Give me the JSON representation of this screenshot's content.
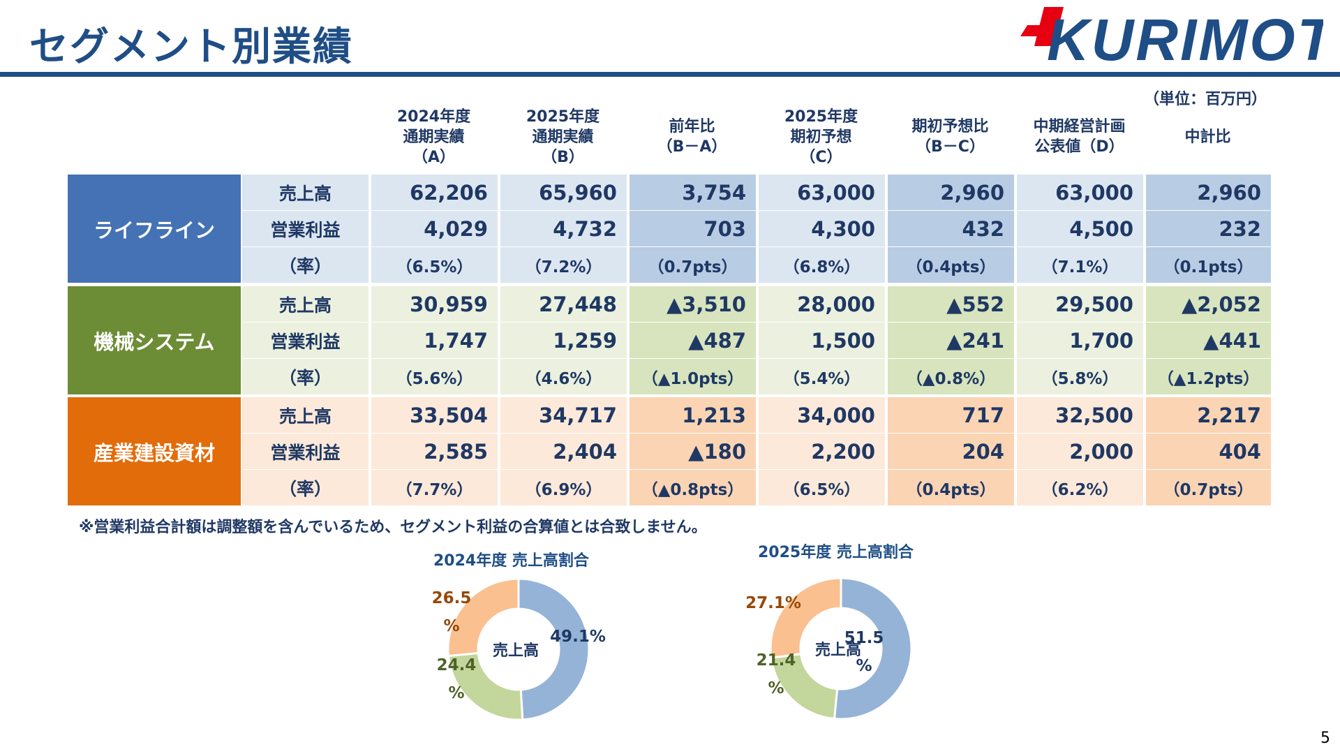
{
  "header": {
    "title": "セグメント別業績",
    "logo_text": "KURIMOTO",
    "unit_note": "（単位：百万円）"
  },
  "colors": {
    "navy": "#1f4e86",
    "lifeline": "#4472b4",
    "machinery": "#6d8c36",
    "industrial": "#e36c0a",
    "logo_red": "#e60012"
  },
  "columns": [
    "2024年度\n通期実績\n（A）",
    "2025年度\n通期実績\n（B）",
    "前年比\n（B－A）",
    "2025年度\n期初予想\n（C）",
    "期初予想比\n（B－C）",
    "中期経営計画\n公表値（D）",
    "中計比"
  ],
  "row_labels": [
    "売上高",
    "営業利益",
    "（率）"
  ],
  "segments": [
    {
      "name": "ライフライン",
      "rows": [
        [
          "62,206",
          "65,960",
          "3,754",
          "63,000",
          "2,960",
          "63,000",
          "2,960"
        ],
        [
          "4,029",
          "4,732",
          "703",
          "4,300",
          "432",
          "4,500",
          "232"
        ],
        [
          "（6.5%）",
          "（7.2%）",
          "（0.7pts）",
          "（6.8%）",
          "（0.4pts）",
          "（7.1%）",
          "（0.1pts）"
        ]
      ]
    },
    {
      "name": "機械システム",
      "rows": [
        [
          "30,959",
          "27,448",
          "▲3,510",
          "28,000",
          "▲552",
          "29,500",
          "▲2,052"
        ],
        [
          "1,747",
          "1,259",
          "▲487",
          "1,500",
          "▲241",
          "1,700",
          "▲441"
        ],
        [
          "（5.6%）",
          "（4.6%）",
          "（▲1.0pts）",
          "（5.4%）",
          "（▲0.8%）",
          "（5.8%）",
          "（▲1.2pts）"
        ]
      ]
    },
    {
      "name": "産業建設資材",
      "rows": [
        [
          "33,504",
          "34,717",
          "1,213",
          "34,000",
          "717",
          "32,500",
          "2,217"
        ],
        [
          "2,585",
          "2,404",
          "▲180",
          "2,200",
          "204",
          "2,000",
          "404"
        ],
        [
          "（7.7%）",
          "（6.9%）",
          "（▲0.8pts）",
          "（6.5%）",
          "（0.4pts）",
          "（6.2%）",
          "（0.7pts）"
        ]
      ]
    }
  ],
  "footnote": "※営業利益合計額は調整額を含んでいるため、セグメント利益の合算値とは合致しません。",
  "chart_data": [
    {
      "type": "pie",
      "title": "2024年度 売上高割合",
      "center_label": "売上高",
      "categories": [
        "ライフライン",
        "機械システム",
        "産業建設資材"
      ],
      "values": [
        49.1,
        24.4,
        26.5
      ],
      "labels": [
        "49.1%",
        "24.4\n%",
        "26.5\n%"
      ],
      "colors": [
        "#95b3d7",
        "#c3d69b",
        "#fac090"
      ],
      "label_colors": [
        "#1f3864",
        "#4f6228",
        "#974806"
      ]
    },
    {
      "type": "pie",
      "title": "2025年度 売上高割合",
      "center_label": "売上高",
      "categories": [
        "ライフライン",
        "機械システム",
        "産業建設資材"
      ],
      "values": [
        51.5,
        21.4,
        27.1
      ],
      "labels": [
        "51.5\n%",
        "21.4\n%",
        "27.1%"
      ],
      "colors": [
        "#95b3d7",
        "#c3d69b",
        "#fac090"
      ],
      "label_colors": [
        "#1f3864",
        "#4f6228",
        "#974806"
      ]
    }
  ],
  "page_number": "5"
}
